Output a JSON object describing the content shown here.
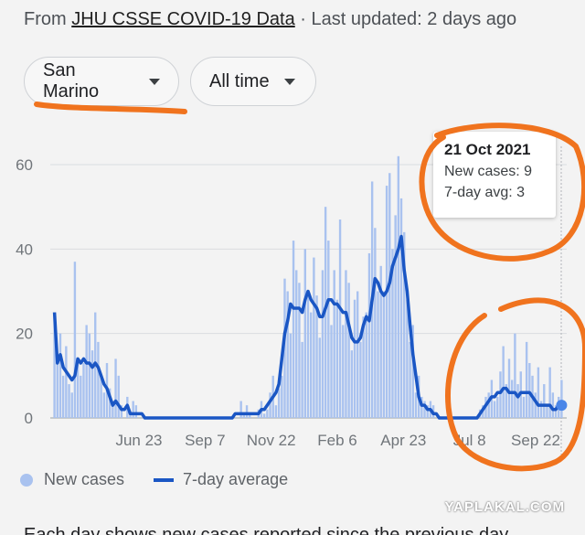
{
  "header": {
    "source_prefix": "From ",
    "source_link": "JHU CSSE COVID-19 Data",
    "updated": " · Last updated: 2 days ago"
  },
  "filters": {
    "country": "San Marino",
    "range": "All time"
  },
  "chart_data": {
    "type": "bar",
    "title": "",
    "xlabel": "",
    "ylabel": "",
    "ylim": [
      0,
      60
    ],
    "yticks": [
      "0",
      "20",
      "40",
      "60"
    ],
    "xtick_labels": [
      "Jun 23",
      "Sep 7",
      "Nov 22",
      "Feb 6",
      "Apr 23",
      "Jul 8",
      "Sep 22"
    ],
    "grid": true,
    "legend_position": "bottom",
    "series": [
      {
        "name": "New cases",
        "kind": "bar",
        "color": "#a9c2ef",
        "values": [
          25,
          15,
          20,
          10,
          17,
          8,
          6,
          37,
          14,
          10,
          13,
          22,
          20,
          16,
          25,
          18,
          10,
          6,
          13,
          7,
          4,
          14,
          10,
          3,
          0,
          5,
          1,
          4,
          3,
          0,
          0,
          0,
          0,
          0,
          0,
          0,
          0,
          0,
          0,
          0,
          0,
          0,
          0,
          0,
          0,
          0,
          0,
          0,
          0,
          0,
          0,
          0,
          0,
          0,
          0,
          0,
          0,
          0,
          0,
          0,
          0,
          0,
          0,
          0,
          4,
          1,
          3,
          1,
          0,
          0,
          2,
          4,
          1,
          2,
          6,
          10,
          3,
          7,
          10,
          33,
          30,
          20,
          42,
          35,
          32,
          18,
          40,
          30,
          25,
          38,
          29,
          19,
          35,
          50,
          42,
          22,
          35,
          28,
          47,
          22,
          35,
          32,
          16,
          28,
          30,
          18,
          24,
          25,
          39,
          56,
          45,
          30,
          36,
          30,
          55,
          58,
          40,
          48,
          62,
          52,
          44,
          28,
          18,
          22,
          6,
          10,
          5,
          4,
          3,
          4,
          3,
          0,
          0,
          0,
          0,
          0,
          0,
          0,
          0,
          0,
          0,
          0,
          0,
          0,
          0,
          0,
          2,
          3,
          5,
          6,
          9,
          4,
          5,
          11,
          17,
          8,
          14,
          9,
          20,
          8,
          11,
          5,
          18,
          13,
          10,
          6,
          12,
          4,
          8,
          3,
          12,
          6,
          3,
          5,
          9
        ]
      },
      {
        "name": "7-day average",
        "kind": "line",
        "color": "#1a56c4",
        "values": [
          25,
          13,
          15,
          12,
          11,
          10,
          9,
          10,
          14,
          13,
          14,
          13,
          13,
          12,
          13,
          12,
          10,
          8,
          7,
          5,
          3,
          4,
          3,
          2,
          2,
          3,
          1,
          1,
          1,
          1,
          1,
          0,
          0,
          0,
          0,
          0,
          0,
          0,
          0,
          0,
          0,
          0,
          0,
          0,
          0,
          0,
          0,
          0,
          0,
          0,
          0,
          0,
          0,
          0,
          0,
          0,
          0,
          0,
          0,
          0,
          0,
          0,
          1,
          1,
          1,
          1,
          1,
          1,
          1,
          1,
          1,
          2,
          2,
          3,
          4,
          5,
          6,
          8,
          14,
          20,
          23,
          27,
          26,
          26,
          26,
          25,
          28,
          30,
          28,
          27,
          26,
          24,
          24,
          26,
          28,
          28,
          27,
          27,
          26,
          25,
          25,
          22,
          19,
          18,
          18,
          19,
          22,
          24,
          23,
          28,
          33,
          32,
          30,
          29,
          30,
          32,
          36,
          38,
          40,
          43,
          35,
          30,
          22,
          15,
          10,
          5,
          3,
          3,
          2,
          2,
          1,
          1,
          0,
          0,
          0,
          0,
          0,
          0,
          0,
          0,
          0,
          0,
          0,
          0,
          0,
          0,
          1,
          2,
          3,
          4,
          5,
          5,
          6,
          6,
          7,
          7,
          6,
          6,
          6,
          5,
          6,
          6,
          6,
          6,
          5,
          4,
          3,
          3,
          3,
          3,
          3,
          2,
          2,
          3,
          3
        ]
      }
    ]
  },
  "tooltip": {
    "date": "21 Oct 2021",
    "cases_line": "New cases: 9",
    "avg_line": "7-day avg: 3"
  },
  "legend": {
    "cases_label": "New cases",
    "avg_label": "7-day average"
  },
  "watermark": "YAPLAKAL.COM",
  "footer_partial": "Each day shows new cases reported since the previous day"
}
